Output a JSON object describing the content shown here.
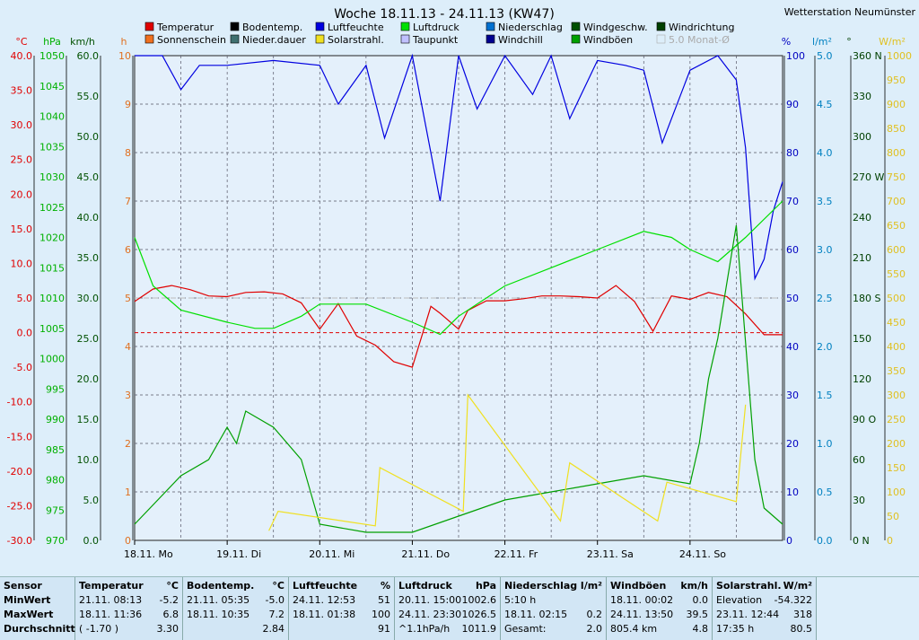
{
  "chart_data": {
    "type": "line",
    "title": "Woche 18.11.13 - 24.11.13 (KW47)",
    "station": "Wetterstation Neumünster",
    "x_ticks": [
      "18.11. Mo",
      "19.11. Di",
      "20.11. Mi",
      "21.11. Do",
      "22.11. Fr",
      "23.11. Sa",
      "24.11. So"
    ],
    "legend": [
      {
        "name": "Temperatur",
        "color": "#e00000"
      },
      {
        "name": "Bodentemp.",
        "color": "#000000"
      },
      {
        "name": "Luftfeuchte",
        "color": "#0000e0"
      },
      {
        "name": "Luftdruck",
        "color": "#00e000"
      },
      {
        "name": "Niederschlag",
        "color": "#0070d0"
      },
      {
        "name": "Windgeschw.",
        "color": "#005000"
      },
      {
        "name": "Windrichtung",
        "color": "#004000"
      },
      {
        "name": "Sonnenschein",
        "color": "#f07020"
      },
      {
        "name": "Nieder.dauer",
        "color": "#407070"
      },
      {
        "name": "Solarstrahl.",
        "color": "#f0e020"
      },
      {
        "name": "Taupunkt",
        "color": "#c0c0ff"
      },
      {
        "name": "Windchill",
        "color": "#000090"
      },
      {
        "name": "Windböen",
        "color": "#00a000"
      },
      {
        "name": "5.0 Monat-Ø",
        "color": "#aaaaaa"
      }
    ],
    "axes": {
      "temp": {
        "unit": "°C",
        "ticks": [
          "40.0",
          "35.0",
          "30.0",
          "25.0",
          "20.0",
          "15.0",
          "10.0",
          "5.0",
          "0.0",
          "-5.0",
          "-10.0",
          "-15.0",
          "-20.0",
          "-25.0",
          "-30.0"
        ],
        "ylim": [
          -30,
          40
        ]
      },
      "pressure": {
        "unit": "hPa",
        "ticks": [
          "1050",
          "1045",
          "1040",
          "1035",
          "1030",
          "1025",
          "1020",
          "1015",
          "1010",
          "1005",
          "1000",
          "995",
          "990",
          "985",
          "980",
          "975",
          "970"
        ],
        "ylim": [
          970,
          1050
        ]
      },
      "wind": {
        "unit": "km/h",
        "ticks": [
          "60.0",
          "55.0",
          "50.0",
          "45.0",
          "40.0",
          "35.0",
          "30.0",
          "25.0",
          "20.0",
          "15.0",
          "10.0",
          "5.0",
          "0.0"
        ],
        "ylim": [
          0,
          60
        ]
      },
      "hours": {
        "unit": "h",
        "ticks": [
          "10",
          "9",
          "8",
          "7",
          "6",
          "5",
          "4",
          "3",
          "2",
          "1",
          "0"
        ],
        "ylim": [
          0,
          10
        ]
      },
      "humidity": {
        "unit": "%",
        "ticks": [
          "100",
          "90",
          "80",
          "70",
          "60",
          "50",
          "40",
          "30",
          "20",
          "10",
          "0"
        ],
        "ylim": [
          0,
          100
        ]
      },
      "rain": {
        "unit": "l/m²",
        "ticks": [
          "5.0",
          "4.5",
          "4.0",
          "3.5",
          "3.0",
          "2.5",
          "2.0",
          "1.5",
          "1.0",
          "0.5",
          "0.0"
        ],
        "ylim": [
          0,
          5
        ]
      },
      "direction": {
        "unit": "°",
        "ticks": [
          "360 N",
          "330",
          "300",
          "270 W",
          "240",
          "210",
          "180 S",
          "150",
          "120",
          "90 O",
          "60",
          "30",
          "0 N"
        ],
        "ylim": [
          0,
          360
        ]
      },
      "solar": {
        "unit": "W/m²",
        "ticks": [
          "1000",
          "950",
          "900",
          "850",
          "800",
          "750",
          "700",
          "650",
          "600",
          "550",
          "500",
          "450",
          "400",
          "350",
          "300",
          "250",
          "200",
          "150",
          "100",
          "50",
          "0"
        ],
        "ylim": [
          0,
          1000
        ]
      }
    },
    "series": [
      {
        "name": "Temperatur",
        "unit": "°C",
        "x": [
          0,
          0.2,
          0.4,
          0.6,
          0.8,
          1.0,
          1.2,
          1.4,
          1.6,
          1.8,
          2.0,
          2.2,
          2.4,
          2.6,
          2.8,
          3.0,
          3.2,
          3.3,
          3.5,
          3.6,
          3.8,
          4.0,
          4.2,
          4.4,
          4.6,
          4.8,
          5.0,
          5.2,
          5.4,
          5.6,
          5.8,
          6.0,
          6.2,
          6.4,
          6.6,
          6.8,
          7.0
        ],
        "values": [
          4.5,
          6.3,
          6.8,
          6.2,
          5.3,
          5.2,
          5.8,
          5.9,
          5.6,
          4.3,
          0.5,
          4.2,
          -0.5,
          -1.8,
          -4.2,
          -5.0,
          3.8,
          2.8,
          0.5,
          3.2,
          4.6,
          4.6,
          4.9,
          5.3,
          5.3,
          5.2,
          5.0,
          6.8,
          4.5,
          0.2,
          5.3,
          4.8,
          5.8,
          5.2,
          2.7,
          -0.3,
          -0.3
        ]
      },
      {
        "name": "Luftfeuchte",
        "unit": "%",
        "x": [
          0,
          0.3,
          0.5,
          0.7,
          1.0,
          1.5,
          2.0,
          2.2,
          2.5,
          2.7,
          3.0,
          3.3,
          3.5,
          3.7,
          4.0,
          4.3,
          4.5,
          4.7,
          4.9,
          5.0,
          5.3,
          5.5,
          5.7,
          6.0,
          6.3,
          6.5,
          6.6,
          6.7,
          6.8,
          6.9,
          7.0
        ],
        "values": [
          100,
          100,
          93,
          98,
          98,
          99,
          98,
          90,
          98,
          83,
          100,
          70,
          100,
          89,
          100,
          92,
          100,
          87,
          95,
          99,
          98,
          97,
          82,
          97,
          100,
          95,
          81,
          54,
          58,
          68,
          74
        ]
      },
      {
        "name": "Luftdruck",
        "unit": "hPa",
        "x": [
          0,
          0.2,
          0.5,
          1.0,
          1.3,
          1.5,
          1.8,
          2.0,
          2.5,
          3.0,
          3.3,
          3.5,
          3.8,
          4.0,
          4.5,
          5.0,
          5.5,
          5.8,
          6.0,
          6.3,
          6.6,
          7.0
        ],
        "values": [
          1020,
          1012,
          1008,
          1006,
          1005,
          1005,
          1007,
          1009,
          1009,
          1006,
          1004,
          1007,
          1010,
          1012,
          1015,
          1018,
          1021,
          1020,
          1018,
          1016,
          1020,
          1026
        ]
      },
      {
        "name": "Windböen",
        "unit": "km/h",
        "x": [
          0,
          0.5,
          0.8,
          0.9,
          1.0,
          1.1,
          1.2,
          1.5,
          1.8,
          2.0,
          2.5,
          3.0,
          3.5,
          4.0,
          4.5,
          5.0,
          5.5,
          6.0,
          6.1,
          6.2,
          6.3,
          6.5,
          6.7,
          6.8,
          7.0
        ],
        "values": [
          2,
          8,
          10,
          12,
          14,
          12,
          16,
          14,
          10,
          2,
          1,
          1,
          3,
          5,
          6,
          7,
          8,
          7,
          12,
          20,
          25,
          39,
          10,
          4,
          2
        ]
      },
      {
        "name": "Solarstrahl.",
        "unit": "W/m²",
        "x": [
          1.45,
          1.55,
          2.6,
          2.65,
          3.55,
          3.6,
          4.6,
          4.7,
          5.65,
          5.75,
          6.5,
          6.6
        ],
        "values": [
          20,
          60,
          30,
          150,
          60,
          300,
          40,
          160,
          40,
          120,
          80,
          280
        ]
      }
    ]
  },
  "table": {
    "columns": [
      {
        "title": "Sensor",
        "unit": "",
        "rows": [
          [
            "MinWert",
            ""
          ],
          [
            "MaxWert",
            ""
          ],
          [
            "Durchschnitt",
            ""
          ]
        ]
      },
      {
        "title": "Temperatur",
        "unit": "°C",
        "rows": [
          [
            "21.11.  08:13",
            "-5.2"
          ],
          [
            "18.11.  11:36",
            "6.8"
          ],
          [
            "( -1.70 )",
            "3.30"
          ]
        ]
      },
      {
        "title": "Bodentemp.",
        "unit": "°C",
        "rows": [
          [
            "21.11.  05:35",
            "-5.0"
          ],
          [
            "18.11.  10:35",
            "7.2"
          ],
          [
            "",
            "2.84"
          ]
        ]
      },
      {
        "title": "Luftfeuchte",
        "unit": "%",
        "rows": [
          [
            "24.11.  12:53",
            "51"
          ],
          [
            "18.11.  01:38",
            "100"
          ],
          [
            "",
            "91"
          ]
        ]
      },
      {
        "title": "Luftdruck",
        "unit": "hPa",
        "rows": [
          [
            "20.11.  15:00",
            "1002.6"
          ],
          [
            "24.11.  23:30",
            "1026.5"
          ],
          [
            "^1.1hPa/h",
            "1011.9"
          ]
        ]
      },
      {
        "title": "Niederschlag",
        "unit": "l/m²",
        "rows": [
          [
            "5:10 h",
            ""
          ],
          [
            "18.11.  02:15",
            "0.2"
          ],
          [
            "Gesamt:",
            "2.0"
          ]
        ]
      },
      {
        "title": "Windböen",
        "unit": "km/h",
        "rows": [
          [
            "18.11.  00:02",
            "0.0"
          ],
          [
            "24.11.  13:50",
            "39.5"
          ],
          [
            "805.4 km",
            "4.8"
          ]
        ]
      },
      {
        "title": "Solarstrahl.",
        "unit": "W/m²",
        "rows": [
          [
            "Elevation",
            "-54.322"
          ],
          [
            "23.11.  12:44",
            "318"
          ],
          [
            "17:35 h",
            "80.5"
          ]
        ]
      }
    ]
  }
}
